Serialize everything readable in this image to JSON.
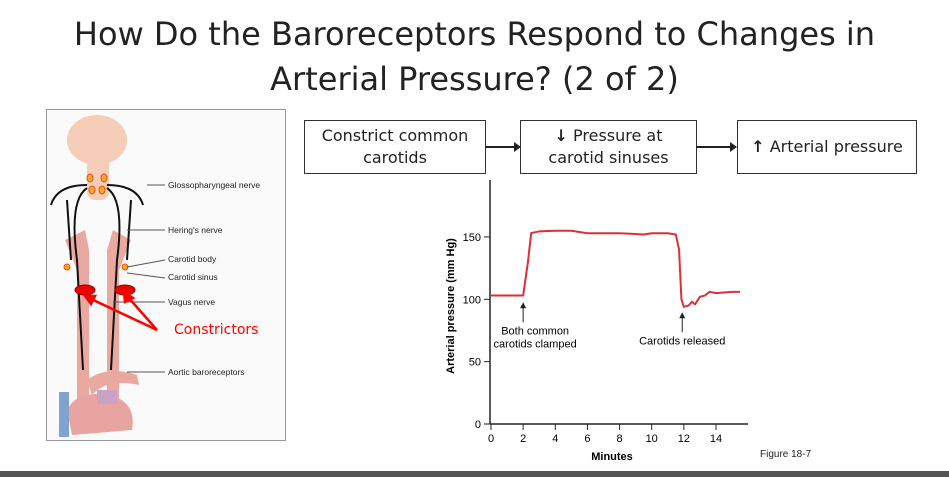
{
  "title_line1": "How Do the Baroreceptors Respond to Changes in",
  "title_line2": "Arterial Pressure? (2 of 2)",
  "flow": {
    "box1": "Constrict common carotids",
    "box2_arrow": "↓",
    "box2": "Pressure at carotid sinuses",
    "box3_arrow": "↑",
    "box3": "Arterial pressure"
  },
  "diagram": {
    "labels": [
      "Glossopharyngeal nerve",
      "Hering's nerve",
      "Carotid body",
      "Carotid sinus",
      "Vagus nerve",
      "Aortic baroreceptors"
    ],
    "constrictors": "Constrictors",
    "constrictor_color": "#ff0000"
  },
  "chart_data": {
    "type": "line",
    "xlabel": "Minutes",
    "ylabel": "Arterial pressure (mm Hg)",
    "xlim": [
      0,
      16
    ],
    "ylim": [
      0,
      190
    ],
    "xticks": [
      0,
      2,
      4,
      6,
      8,
      10,
      12,
      14
    ],
    "yticks": [
      0,
      50,
      100,
      150
    ],
    "grid": false,
    "color": "#d9303a",
    "x": [
      0,
      2,
      2.3,
      2.5,
      3,
      4,
      5,
      6,
      8,
      9.5,
      10,
      11,
      11.5,
      11.7,
      11.85,
      12,
      12.3,
      12.5,
      12.7,
      13,
      13.3,
      13.6,
      14,
      15,
      15.5
    ],
    "y": [
      103,
      103,
      130,
      153,
      154.5,
      155,
      155,
      153,
      153,
      152,
      153,
      153,
      152,
      140,
      100,
      94,
      95,
      98,
      96,
      102,
      103,
      106,
      105,
      106,
      106
    ],
    "annotations": [
      {
        "x": 2,
        "text1": "Both common",
        "text2": "carotids clamped"
      },
      {
        "x": 11.9,
        "text1": "Carotids released",
        "text2": ""
      }
    ]
  },
  "figure_label": "Figure 18-7"
}
